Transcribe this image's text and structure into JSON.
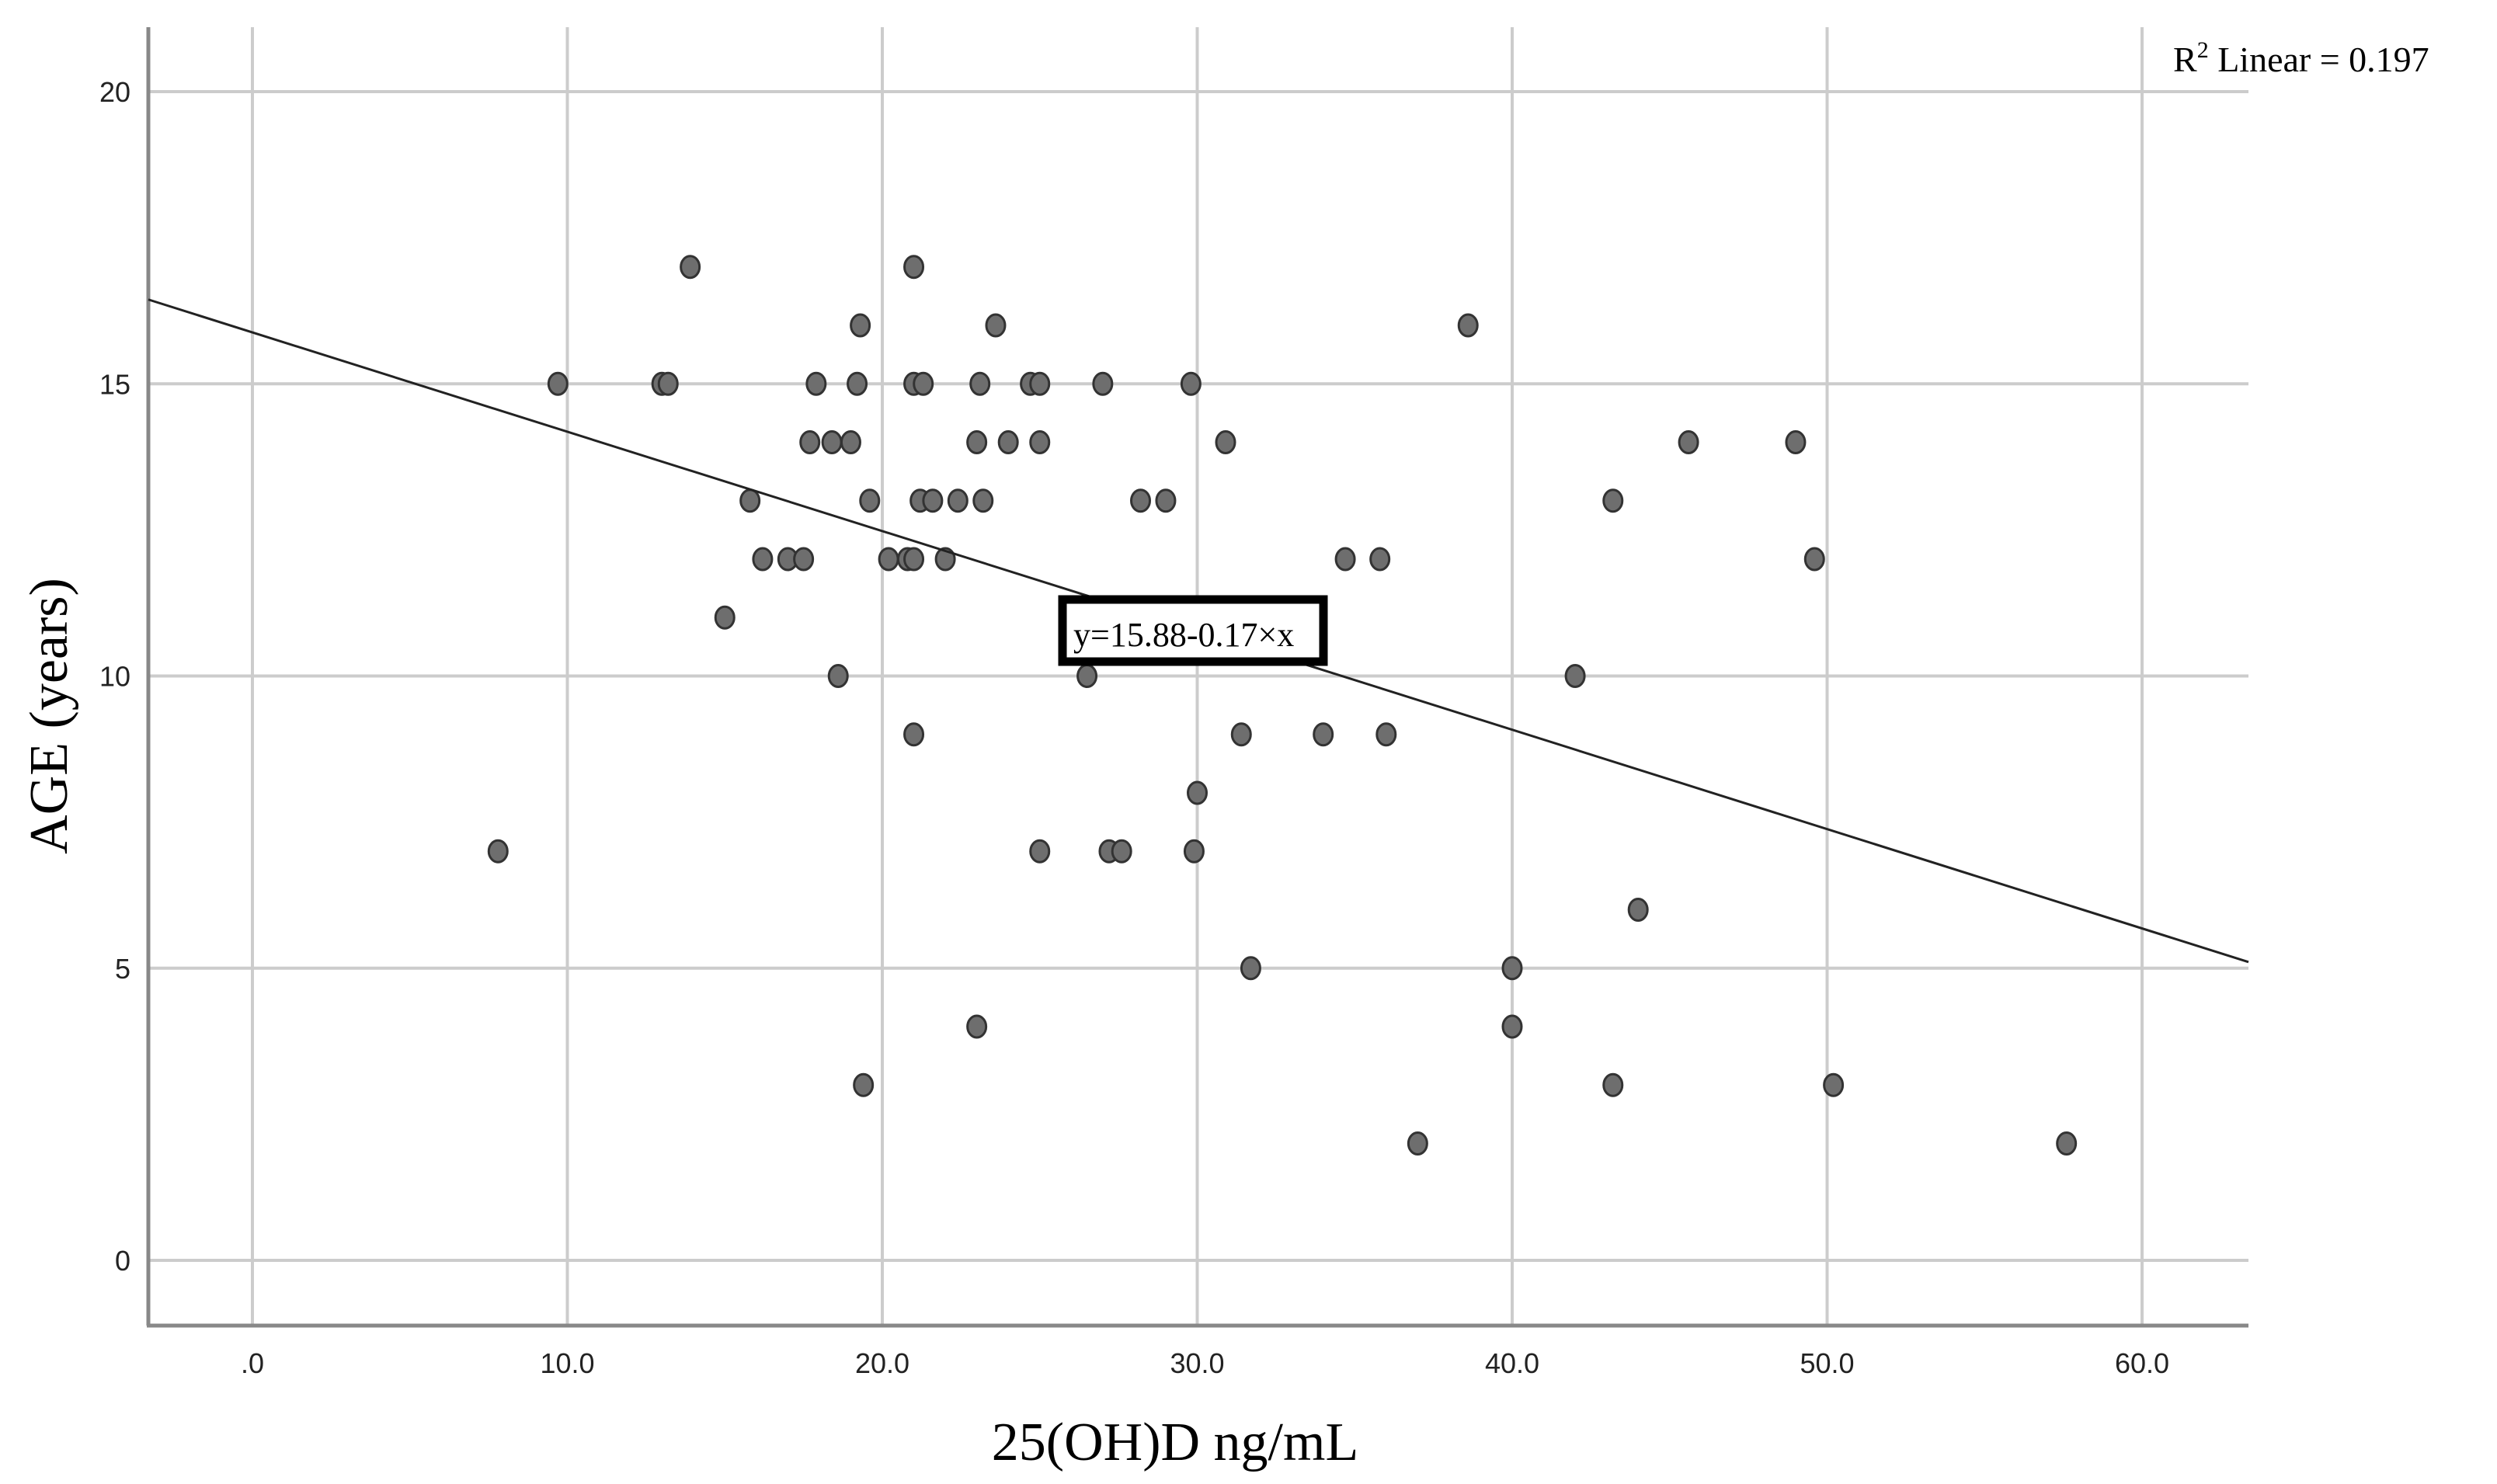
{
  "chart_data": {
    "type": "scatter",
    "title": "",
    "xlabel": "25(OH)D ng/mL",
    "ylabel": "AGE (years)",
    "xlim": [
      -3.3,
      63.3
    ],
    "ylim": [
      -1.1,
      21.1
    ],
    "x_ticks": [
      0,
      10,
      20,
      30,
      40,
      50,
      60
    ],
    "x_tick_labels": [
      ".0",
      "10.0",
      "20.0",
      "30.0",
      "40.0",
      "50.0",
      "60.0"
    ],
    "y_ticks": [
      0,
      5,
      10,
      15,
      20
    ],
    "y_tick_labels": [
      "0",
      "5",
      "10",
      "15",
      "20"
    ],
    "grid": true,
    "legend": null,
    "fit_line": {
      "intercept": 15.88,
      "slope": -0.17,
      "label": "y=15.88-0.17×x"
    },
    "r2_label": {
      "prefix": "R",
      "sup": "2",
      "suffix": " Linear = 0.197"
    },
    "colors": {
      "point_fill": "#6e6e6e",
      "point_stroke": "#333333",
      "grid": "#cccccc",
      "axis": "#888888",
      "fit": "#222222"
    },
    "points": [
      [
        7.8,
        7
      ],
      [
        9.7,
        15
      ],
      [
        13.0,
        15
      ],
      [
        13.2,
        15
      ],
      [
        13.9,
        17
      ],
      [
        15.0,
        11
      ],
      [
        15.8,
        13
      ],
      [
        16.2,
        12
      ],
      [
        17.0,
        12
      ],
      [
        17.5,
        12
      ],
      [
        17.7,
        14
      ],
      [
        18.4,
        14
      ],
      [
        19.0,
        14
      ],
      [
        17.9,
        15
      ],
      [
        18.6,
        10
      ],
      [
        19.2,
        15
      ],
      [
        19.3,
        16
      ],
      [
        19.6,
        13
      ],
      [
        19.4,
        3
      ],
      [
        20.2,
        12
      ],
      [
        20.8,
        12
      ],
      [
        21.0,
        12
      ],
      [
        21.0,
        17
      ],
      [
        21.0,
        9
      ],
      [
        21.0,
        15
      ],
      [
        21.3,
        15
      ],
      [
        21.2,
        13
      ],
      [
        21.6,
        13
      ],
      [
        22.0,
        12
      ],
      [
        22.4,
        13
      ],
      [
        23.0,
        14
      ],
      [
        23.0,
        4
      ],
      [
        23.1,
        15
      ],
      [
        23.2,
        13
      ],
      [
        23.6,
        16
      ],
      [
        24.0,
        14
      ],
      [
        24.7,
        15
      ],
      [
        25.0,
        15
      ],
      [
        25.0,
        14
      ],
      [
        25.0,
        7
      ],
      [
        26.5,
        10
      ],
      [
        27.0,
        15
      ],
      [
        27.2,
        7
      ],
      [
        27.6,
        7
      ],
      [
        28.2,
        13
      ],
      [
        29.0,
        13
      ],
      [
        29.8,
        15
      ],
      [
        29.9,
        7
      ],
      [
        30.0,
        8
      ],
      [
        30.9,
        14
      ],
      [
        31.4,
        9
      ],
      [
        31.7,
        5
      ],
      [
        34.0,
        9
      ],
      [
        34.7,
        12
      ],
      [
        35.8,
        12
      ],
      [
        36.0,
        9
      ],
      [
        37.0,
        2
      ],
      [
        38.6,
        16
      ],
      [
        40.0,
        5
      ],
      [
        40.0,
        4
      ],
      [
        42.0,
        10
      ],
      [
        43.2,
        13
      ],
      [
        43.2,
        3
      ],
      [
        44.0,
        6
      ],
      [
        45.6,
        14
      ],
      [
        49.0,
        14
      ],
      [
        49.6,
        12
      ],
      [
        50.2,
        3
      ],
      [
        57.6,
        2
      ]
    ]
  }
}
